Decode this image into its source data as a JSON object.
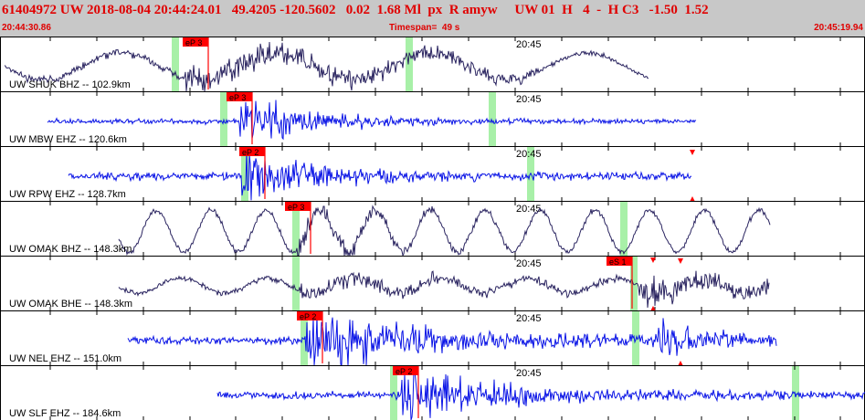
{
  "header": {
    "title": "61404972 UW 2018-08-04 20:44:24.01   49.4205 -120.5602   0.02  1.68 Ml  px  R amyw     UW 01  H   4  -  H C3   -1.50  1.52",
    "start_time": "20:44:30.86",
    "timespan": "Timespan=  49 s",
    "end_time": "20:45:19.94"
  },
  "tick_label": "20:45",
  "colors": {
    "header_bg": "#c8c8c8",
    "header_text": "#e00000",
    "trace_broadband": "#2a2460",
    "trace_short_period": "#0a14e6",
    "pick_box": "#ff0000",
    "green_band": "#a8f0a8"
  },
  "traces": [
    {
      "label": "UW SHUK BHZ -- 102.9km",
      "pick_label": "eP 3",
      "color": "broadband"
    },
    {
      "label": "UW MBW EHZ -- 120.6km",
      "pick_label": "eP 3",
      "color": "short_period"
    },
    {
      "label": "UW RPW EHZ -- 128.7km",
      "pick_label": "eP 2",
      "color": "short_period"
    },
    {
      "label": "UW OMAK BHZ -- 148.3km",
      "pick_label": "eP 3",
      "color": "broadband"
    },
    {
      "label": "UW OMAK BHE -- 148.3km",
      "pick_label": "eS 1",
      "color": "broadband"
    },
    {
      "label": "UW NEL EHZ -- 151.0km",
      "pick_label": "eP 2",
      "color": "short_period"
    },
    {
      "label": "UW SLF EHZ -- 184.6km",
      "pick_label": "eP 2",
      "color": "short_period"
    }
  ]
}
